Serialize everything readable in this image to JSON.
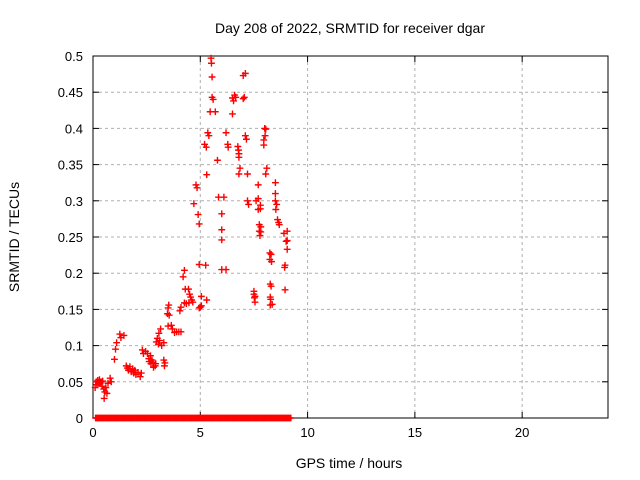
{
  "chart_data": {
    "type": "scatter",
    "title": "Day 208 of 2022, SRMTID for receiver dgar",
    "xlabel": "GPS time / hours",
    "ylabel": "SRMTID / TECUs",
    "xlim": [
      0,
      24
    ],
    "ylim": [
      0,
      0.5
    ],
    "xticks": [
      "0",
      "5",
      "10",
      "15",
      "20"
    ],
    "yticks": [
      "0",
      "0.05",
      "0.1",
      "0.15",
      "0.2",
      "0.25",
      "0.3",
      "0.35",
      "0.4",
      "0.45",
      "0.5"
    ],
    "grid": "dashed, at every major tick, mirrored inner tick marks on all four borders",
    "legend": "none",
    "marker": "plus",
    "marker_color": "#ff0000",
    "grid_color": "#b0b0b0",
    "axis_color": "#000000",
    "series": [
      {
        "name": "SRMTID",
        "points": [
          [
            0.1,
            0.042
          ],
          [
            0.15,
            0.05
          ],
          [
            0.18,
            0.046
          ],
          [
            0.22,
            0.052
          ],
          [
            0.25,
            0.048
          ],
          [
            0.3,
            0.053
          ],
          [
            0.33,
            0.048
          ],
          [
            0.38,
            0.05
          ],
          [
            0.42,
            0.044
          ],
          [
            0.45,
            0.051
          ],
          [
            0.5,
            0.04
          ],
          [
            0.52,
            0.027
          ],
          [
            0.55,
            0.036
          ],
          [
            0.6,
            0.042
          ],
          [
            0.65,
            0.034
          ],
          [
            0.7,
            0.048
          ],
          [
            0.8,
            0.055
          ],
          [
            0.85,
            0.05
          ],
          [
            1.0,
            0.081
          ],
          [
            1.05,
            0.095
          ],
          [
            1.1,
            0.104
          ],
          [
            1.25,
            0.116
          ],
          [
            1.3,
            0.111
          ],
          [
            1.44,
            0.114
          ],
          [
            1.55,
            0.072
          ],
          [
            1.6,
            0.069
          ],
          [
            1.65,
            0.066
          ],
          [
            1.72,
            0.071
          ],
          [
            1.78,
            0.064
          ],
          [
            1.85,
            0.068
          ],
          [
            1.9,
            0.062
          ],
          [
            1.95,
            0.066
          ],
          [
            2.0,
            0.06
          ],
          [
            2.1,
            0.063
          ],
          [
            2.2,
            0.057
          ],
          [
            2.25,
            0.062
          ],
          [
            2.3,
            0.094
          ],
          [
            2.35,
            0.089
          ],
          [
            2.45,
            0.092
          ],
          [
            2.54,
            0.089
          ],
          [
            2.6,
            0.082
          ],
          [
            2.62,
            0.078
          ],
          [
            2.68,
            0.086
          ],
          [
            2.7,
            0.075
          ],
          [
            2.75,
            0.08
          ],
          [
            2.8,
            0.077
          ],
          [
            2.82,
            0.07
          ],
          [
            2.9,
            0.072
          ],
          [
            2.92,
            0.075
          ],
          [
            2.95,
            0.105
          ],
          [
            3.0,
            0.11
          ],
          [
            3.05,
            0.102
          ],
          [
            3.07,
            0.117
          ],
          [
            3.1,
            0.107
          ],
          [
            3.15,
            0.123
          ],
          [
            3.2,
            0.1
          ],
          [
            3.3,
            0.104
          ],
          [
            3.3,
            0.08
          ],
          [
            3.33,
            0.072
          ],
          [
            3.35,
            0.076
          ],
          [
            3.47,
            0.144
          ],
          [
            3.5,
            0.152
          ],
          [
            3.5,
            0.127
          ],
          [
            3.53,
            0.156
          ],
          [
            3.55,
            0.142
          ],
          [
            3.65,
            0.128
          ],
          [
            3.7,
            0.123
          ],
          [
            3.8,
            0.118
          ],
          [
            3.9,
            0.119
          ],
          [
            4.0,
            0.119
          ],
          [
            4.05,
            0.148
          ],
          [
            4.1,
            0.119
          ],
          [
            4.1,
            0.153
          ],
          [
            4.2,
            0.195
          ],
          [
            4.26,
            0.204
          ],
          [
            4.26,
            0.159
          ],
          [
            4.3,
            0.178
          ],
          [
            4.35,
            0.158
          ],
          [
            4.45,
            0.178
          ],
          [
            4.47,
            0.159
          ],
          [
            4.5,
            0.171
          ],
          [
            4.55,
            0.167
          ],
          [
            4.6,
            0.163
          ],
          [
            4.65,
            0.16
          ],
          [
            4.7,
            0.296
          ],
          [
            4.8,
            0.322
          ],
          [
            4.85,
            0.318
          ],
          [
            4.9,
            0.281
          ],
          [
            4.95,
            0.268
          ],
          [
            4.95,
            0.212
          ],
          [
            4.95,
            0.152
          ],
          [
            5.0,
            0.153
          ],
          [
            5.05,
            0.168
          ],
          [
            5.05,
            0.155
          ],
          [
            5.2,
            0.378
          ],
          [
            5.25,
            0.211
          ],
          [
            5.28,
            0.374
          ],
          [
            5.3,
            0.336
          ],
          [
            5.3,
            0.163
          ],
          [
            5.35,
            0.394
          ],
          [
            5.4,
            0.39
          ],
          [
            5.46,
            0.423
          ],
          [
            5.5,
            0.497
          ],
          [
            5.52,
            0.49
          ],
          [
            5.55,
            0.471
          ],
          [
            5.55,
            0.443
          ],
          [
            5.6,
            0.44
          ],
          [
            5.7,
            0.423
          ],
          [
            5.8,
            0.356
          ],
          [
            5.85,
            0.305
          ],
          [
            6.0,
            0.282
          ],
          [
            6.0,
            0.26
          ],
          [
            6.0,
            0.246
          ],
          [
            6.0,
            0.205
          ],
          [
            6.1,
            0.305
          ],
          [
            6.2,
            0.394
          ],
          [
            6.2,
            0.205
          ],
          [
            6.28,
            0.378
          ],
          [
            6.3,
            0.374
          ],
          [
            6.5,
            0.442
          ],
          [
            6.5,
            0.42
          ],
          [
            6.55,
            0.438
          ],
          [
            6.6,
            0.446
          ],
          [
            6.65,
            0.443
          ],
          [
            6.75,
            0.375
          ],
          [
            6.78,
            0.37
          ],
          [
            6.8,
            0.365
          ],
          [
            6.8,
            0.36
          ],
          [
            6.8,
            0.337
          ],
          [
            6.85,
            0.345
          ],
          [
            7.0,
            0.473
          ],
          [
            7.0,
            0.441
          ],
          [
            7.05,
            0.443
          ],
          [
            7.1,
            0.476
          ],
          [
            7.1,
            0.39
          ],
          [
            7.15,
            0.385
          ],
          [
            7.2,
            0.337
          ],
          [
            7.2,
            0.3
          ],
          [
            7.25,
            0.295
          ],
          [
            7.5,
            0.175
          ],
          [
            7.5,
            0.171
          ],
          [
            7.52,
            0.166
          ],
          [
            7.55,
            0.168
          ],
          [
            7.55,
            0.16
          ],
          [
            7.6,
            0.3
          ],
          [
            7.7,
            0.322
          ],
          [
            7.7,
            0.303
          ],
          [
            7.7,
            0.288
          ],
          [
            7.75,
            0.267
          ],
          [
            7.75,
            0.258
          ],
          [
            7.78,
            0.252
          ],
          [
            7.8,
            0.294
          ],
          [
            7.8,
            0.289
          ],
          [
            7.82,
            0.264
          ],
          [
            7.82,
            0.257
          ],
          [
            7.96,
            0.384
          ],
          [
            7.96,
            0.377
          ],
          [
            8.0,
            0.4
          ],
          [
            8.02,
            0.39
          ],
          [
            8.05,
            0.399
          ],
          [
            8.05,
            0.337
          ],
          [
            8.1,
            0.345
          ],
          [
            8.24,
            0.228
          ],
          [
            8.24,
            0.219
          ],
          [
            8.26,
            0.185
          ],
          [
            8.26,
            0.167
          ],
          [
            8.26,
            0.156
          ],
          [
            8.28,
            0.164
          ],
          [
            8.3,
            0.182
          ],
          [
            8.3,
            0.226
          ],
          [
            8.32,
            0.216
          ],
          [
            8.35,
            0.157
          ],
          [
            8.5,
            0.325
          ],
          [
            8.5,
            0.31
          ],
          [
            8.5,
            0.3
          ],
          [
            8.52,
            0.288
          ],
          [
            8.56,
            0.295
          ],
          [
            8.6,
            0.274
          ],
          [
            8.65,
            0.27
          ],
          [
            8.68,
            0.267
          ],
          [
            8.9,
            0.255
          ],
          [
            8.93,
            0.208
          ],
          [
            8.95,
            0.211
          ],
          [
            8.95,
            0.177
          ],
          [
            9.0,
            0.244
          ],
          [
            9.05,
            0.258
          ],
          [
            9.05,
            0.245
          ],
          [
            9.05,
            0.233
          ]
        ]
      },
      {
        "name": "zero-baseline",
        "generator": {
          "x_start": 0.12,
          "x_end": 9.22,
          "step": 0.05,
          "y": 0
        }
      }
    ]
  }
}
